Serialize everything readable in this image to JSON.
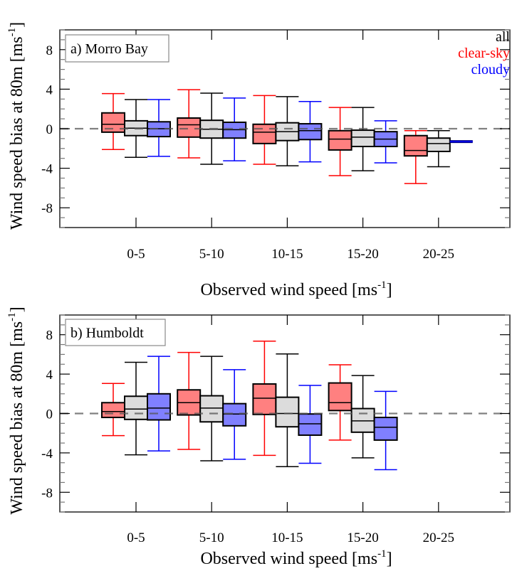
{
  "chart_data": [
    {
      "type": "box",
      "panel_label": "a) Morro Bay",
      "xlabel": "Observed wind speed [ms",
      "xlabel_sup": "-1",
      "xlabel_end": "]",
      "ylabel": "Wind speed bias at 80m [ms",
      "ylabel_sup": "-1",
      "ylabel_end": "]",
      "ylim": [
        -10,
        10
      ],
      "yticks": [
        -8,
        -4,
        0,
        4,
        8
      ],
      "yminor_step": 1,
      "categories": [
        "0-5",
        "5-10",
        "10-15",
        "15-20",
        "20-25"
      ],
      "reference_line": 0,
      "legend": [
        {
          "label": "all",
          "color": "#000000"
        },
        {
          "label": "clear-sky",
          "color": "#ff0000"
        },
        {
          "label": "cloudy",
          "color": "#0000ff"
        }
      ],
      "series": [
        {
          "name": "clear-sky",
          "stroke": "#ff0000",
          "fill": "#ff8080",
          "boxes": [
            {
              "whisker_low": -2.1,
              "q1": -0.35,
              "median": 0.45,
              "q3": 1.6,
              "whisker_high": 3.55
            },
            {
              "whisker_low": -2.95,
              "q1": -0.85,
              "median": 0.4,
              "q3": 1.08,
              "whisker_high": 3.95
            },
            {
              "whisker_low": -3.6,
              "q1": -1.5,
              "median": -0.35,
              "q3": 0.45,
              "whisker_high": 3.35
            },
            {
              "whisker_low": -4.75,
              "q1": -2.15,
              "median": -1.05,
              "q3": -0.2,
              "whisker_high": 2.15
            },
            {
              "whisker_low": -5.55,
              "q1": -2.75,
              "median": -2.2,
              "q3": -0.7,
              "whisker_high": -0.2
            }
          ]
        },
        {
          "name": "all",
          "stroke": "#000000",
          "fill": "#dcdcdc",
          "boxes": [
            {
              "whisker_low": -2.9,
              "q1": -0.7,
              "median": 0.05,
              "q3": 0.8,
              "whisker_high": 2.95
            },
            {
              "whisker_low": -3.6,
              "q1": -0.95,
              "median": -0.05,
              "q3": 0.85,
              "whisker_high": 3.6
            },
            {
              "whisker_low": -3.75,
              "q1": -1.2,
              "median": -0.3,
              "q3": 0.6,
              "whisker_high": 3.25
            },
            {
              "whisker_low": -4.25,
              "q1": -1.8,
              "median": -0.85,
              "q3": -0.15,
              "whisker_high": 2.15
            },
            {
              "whisker_low": -3.85,
              "q1": -2.3,
              "median": -1.5,
              "q3": -0.95,
              "whisker_high": -0.2
            }
          ]
        },
        {
          "name": "cloudy",
          "stroke": "#0000ff",
          "fill": "#8080ff",
          "boxes": [
            {
              "whisker_low": -2.8,
              "q1": -0.8,
              "median": 0.0,
              "q3": 0.7,
              "whisker_high": 2.95
            },
            {
              "whisker_low": -3.25,
              "q1": -0.95,
              "median": -0.1,
              "q3": 0.65,
              "whisker_high": 3.1
            },
            {
              "whisker_low": -3.35,
              "q1": -1.1,
              "median": -0.2,
              "q3": 0.5,
              "whisker_high": 2.75
            },
            {
              "whisker_low": -3.45,
              "q1": -1.8,
              "median": -1.05,
              "q3": -0.3,
              "whisker_high": 0.8
            },
            {
              "whisker_low": -1.3,
              "q1": -1.3,
              "median": -1.3,
              "q3": -1.3,
              "whisker_high": -1.3
            }
          ]
        }
      ]
    },
    {
      "type": "box",
      "panel_label": "b) Humboldt",
      "xlabel": "Observed wind speed [ms",
      "xlabel_sup": "-1",
      "xlabel_end": "]",
      "ylabel": "Wind speed bias at 80m [ms",
      "ylabel_sup": "-1",
      "ylabel_end": "]",
      "ylim": [
        -10,
        10
      ],
      "yticks": [
        -8,
        -4,
        0,
        4,
        8
      ],
      "yminor_step": 1,
      "categories": [
        "0-5",
        "5-10",
        "10-15",
        "15-20",
        "20-25"
      ],
      "reference_line": 0,
      "legend": [],
      "series": [
        {
          "name": "clear-sky",
          "stroke": "#ff0000",
          "fill": "#ff8080",
          "boxes": [
            {
              "whisker_low": -2.25,
              "q1": -0.4,
              "median": 0.2,
              "q3": 1.1,
              "whisker_high": 3.05
            },
            {
              "whisker_low": -3.65,
              "q1": -0.15,
              "median": 1.1,
              "q3": 2.4,
              "whisker_high": 6.2
            },
            {
              "whisker_low": -4.25,
              "q1": -0.1,
              "median": 1.55,
              "q3": 3.0,
              "whisker_high": 7.35
            },
            {
              "whisker_low": -2.7,
              "q1": 0.3,
              "median": 1.1,
              "q3": 3.1,
              "whisker_high": 4.95
            },
            null
          ]
        },
        {
          "name": "all",
          "stroke": "#000000",
          "fill": "#dcdcdc",
          "boxes": [
            {
              "whisker_low": -4.2,
              "q1": -0.6,
              "median": 0.45,
              "q3": 1.75,
              "whisker_high": 5.2
            },
            {
              "whisker_low": -4.8,
              "q1": -0.85,
              "median": 0.55,
              "q3": 1.8,
              "whisker_high": 5.8
            },
            {
              "whisker_low": -5.4,
              "q1": -1.35,
              "median": 0.0,
              "q3": 1.65,
              "whisker_high": 6.05
            },
            {
              "whisker_low": -4.5,
              "q1": -1.9,
              "median": -0.75,
              "q3": 0.5,
              "whisker_high": 3.85
            },
            null
          ]
        },
        {
          "name": "cloudy",
          "stroke": "#0000ff",
          "fill": "#8080ff",
          "boxes": [
            {
              "whisker_low": -3.8,
              "q1": -0.65,
              "median": 0.55,
              "q3": 2.0,
              "whisker_high": 5.8
            },
            {
              "whisker_low": -4.65,
              "q1": -1.25,
              "median": -0.05,
              "q3": 1.0,
              "whisker_high": 4.45
            },
            {
              "whisker_low": -5.05,
              "q1": -2.2,
              "median": -1.05,
              "q3": -0.05,
              "whisker_high": 2.85
            },
            {
              "whisker_low": -5.7,
              "q1": -2.7,
              "median": -1.4,
              "q3": -0.4,
              "whisker_high": 2.25
            },
            null
          ]
        }
      ]
    }
  ]
}
